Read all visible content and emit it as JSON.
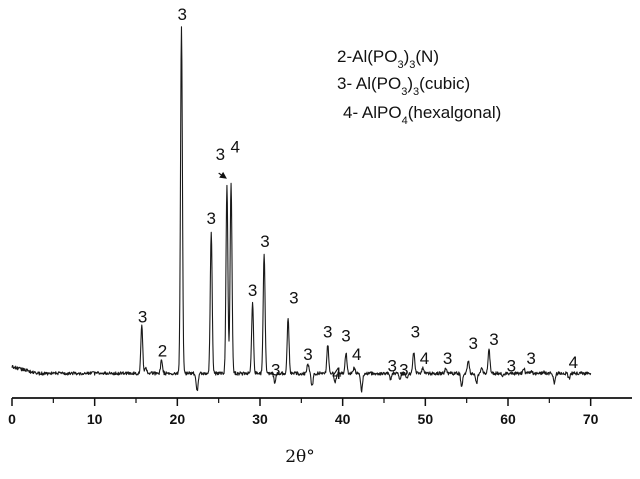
{
  "chart_data": {
    "type": "line",
    "title": "",
    "xlabel": "2θ°",
    "ylabel": "",
    "xlim": [
      0,
      75
    ],
    "ylim": [
      0,
      100
    ],
    "x_ticks": [
      0,
      10,
      20,
      30,
      40,
      50,
      60,
      70
    ],
    "x_tick_labels": [
      "0",
      "10",
      "20",
      "30",
      "40",
      "50",
      "60",
      "70"
    ],
    "baseline": 6.5,
    "x_start": 0,
    "x_end": 70,
    "grid": false,
    "legend_position": "top-right",
    "legend": [
      {
        "prefix": "2-Al(PO",
        "sub1": "3",
        "mid": ")",
        "sub2": "3",
        "suffix": "(N)"
      },
      {
        "prefix": "3- Al(PO",
        "sub1": "3",
        "mid": ")",
        "sub2": "3",
        "suffix": "(cubic)"
      },
      {
        "prefix": "4- AlPO",
        "sub1": "4",
        "mid": "",
        "sub2": "",
        "suffix": "(hexalgonal)"
      }
    ],
    "peaks": [
      {
        "x": 15.7,
        "height": 19
      },
      {
        "x": 16.2,
        "height": 8
      },
      {
        "x": 18.1,
        "height": 10
      },
      {
        "x": 20.5,
        "height": 98
      },
      {
        "x": 22.4,
        "height": 2
      },
      {
        "x": 24.1,
        "height": 44
      },
      {
        "x": 26.0,
        "height": 56
      },
      {
        "x": 26.5,
        "height": 57
      },
      {
        "x": 29.1,
        "height": 25
      },
      {
        "x": 30.5,
        "height": 38
      },
      {
        "x": 31.8,
        "height": 4
      },
      {
        "x": 33.4,
        "height": 21
      },
      {
        "x": 35.8,
        "height": 9
      },
      {
        "x": 36.3,
        "height": 3
      },
      {
        "x": 38.2,
        "height": 14
      },
      {
        "x": 39.1,
        "height": 4
      },
      {
        "x": 40.4,
        "height": 12
      },
      {
        "x": 41.4,
        "height": 8
      },
      {
        "x": 42.3,
        "height": 2
      },
      {
        "x": 45.8,
        "height": 5
      },
      {
        "x": 46.9,
        "height": 5
      },
      {
        "x": 47.8,
        "height": 5
      },
      {
        "x": 48.6,
        "height": 12
      },
      {
        "x": 49.7,
        "height": 8
      },
      {
        "x": 52.5,
        "height": 8
      },
      {
        "x": 54.4,
        "height": 3
      },
      {
        "x": 55.2,
        "height": 10
      },
      {
        "x": 56.2,
        "height": 4
      },
      {
        "x": 56.8,
        "height": 8
      },
      {
        "x": 57.7,
        "height": 13
      },
      {
        "x": 59.4,
        "height": 6
      },
      {
        "x": 61.9,
        "height": 8
      },
      {
        "x": 62.8,
        "height": 7
      },
      {
        "x": 64.3,
        "height": 7
      },
      {
        "x": 65.6,
        "height": 4
      },
      {
        "x": 67.4,
        "height": 5
      }
    ],
    "peak_labels": [
      {
        "text": "3",
        "x": 15.8,
        "y": 20
      },
      {
        "text": "2",
        "x": 18.2,
        "y": 11
      },
      {
        "text": "3",
        "x": 20.6,
        "y": 100
      },
      {
        "text": "3",
        "x": 24.1,
        "y": 46
      },
      {
        "text": "3",
        "x": 25.2,
        "y": 63
      },
      {
        "text": "4",
        "x": 27.0,
        "y": 65
      },
      {
        "text": "3",
        "x": 29.1,
        "y": 27
      },
      {
        "text": "3",
        "x": 30.6,
        "y": 40
      },
      {
        "text": "3",
        "x": 31.9,
        "y": 6
      },
      {
        "text": "3",
        "x": 34.1,
        "y": 25
      },
      {
        "text": "3",
        "x": 35.8,
        "y": 10
      },
      {
        "text": "3",
        "x": 38.2,
        "y": 16
      },
      {
        "text": "4",
        "x": 39.3,
        "y": 5
      },
      {
        "text": "3",
        "x": 40.4,
        "y": 15
      },
      {
        "text": "4",
        "x": 41.7,
        "y": 10
      },
      {
        "text": "3",
        "x": 46.0,
        "y": 7
      },
      {
        "text": "3",
        "x": 47.4,
        "y": 6
      },
      {
        "text": "3",
        "x": 48.8,
        "y": 16
      },
      {
        "text": "4",
        "x": 49.9,
        "y": 9
      },
      {
        "text": "3",
        "x": 52.7,
        "y": 9
      },
      {
        "text": "3",
        "x": 55.8,
        "y": 13
      },
      {
        "text": "3",
        "x": 58.3,
        "y": 14
      },
      {
        "text": "3",
        "x": 60.4,
        "y": 7
      },
      {
        "text": "3",
        "x": 62.8,
        "y": 9
      },
      {
        "text": "4",
        "x": 67.9,
        "y": 8
      }
    ],
    "arrow": {
      "x_from": 25.0,
      "y_from": 59.5,
      "x_to": 26.0,
      "y_to": 58
    }
  }
}
